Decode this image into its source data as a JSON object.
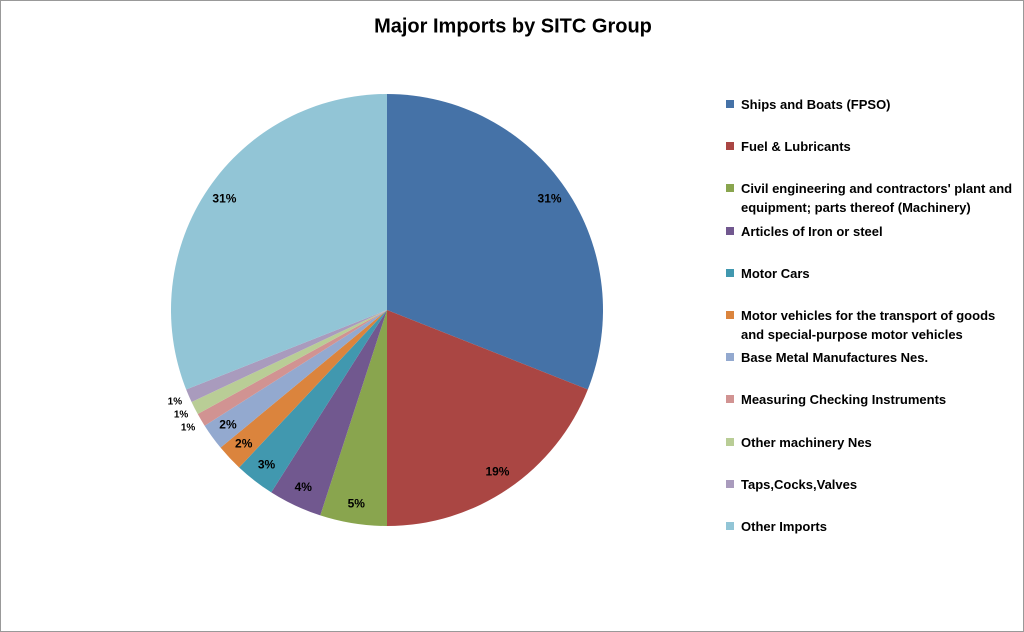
{
  "chart_data": {
    "type": "pie",
    "title": "Major Imports by SITC Group",
    "categories": [
      "Ships and Boats (FPSO)",
      "Fuel & Lubricants",
      "Civil engineering and contractors' plant and equipment; parts thereof (Machinery)",
      "Articles of Iron or steel",
      "Motor Cars",
      "Motor vehicles for the transport of goods and special-purpose motor vehicles",
      "Base Metal Manufactures Nes.",
      "Measuring Checking Instruments",
      "Other machinery Nes",
      "Taps,Cocks,Valves",
      "Other Imports"
    ],
    "values": [
      31,
      19,
      5,
      4,
      3,
      2,
      2,
      1,
      1,
      1,
      31
    ],
    "value_labels": [
      "31%",
      "19%",
      "5%",
      "4%",
      "3%",
      "2%",
      "2%",
      "1%",
      "1%",
      "1%",
      "31%"
    ],
    "colors": [
      "#4572A7",
      "#AA4643",
      "#89A54E",
      "#71588F",
      "#4198AF",
      "#DB843D",
      "#93A9CF",
      "#D19392",
      "#B9CD96",
      "#A99BBD",
      "#92C5D6"
    ],
    "legend": "right"
  }
}
